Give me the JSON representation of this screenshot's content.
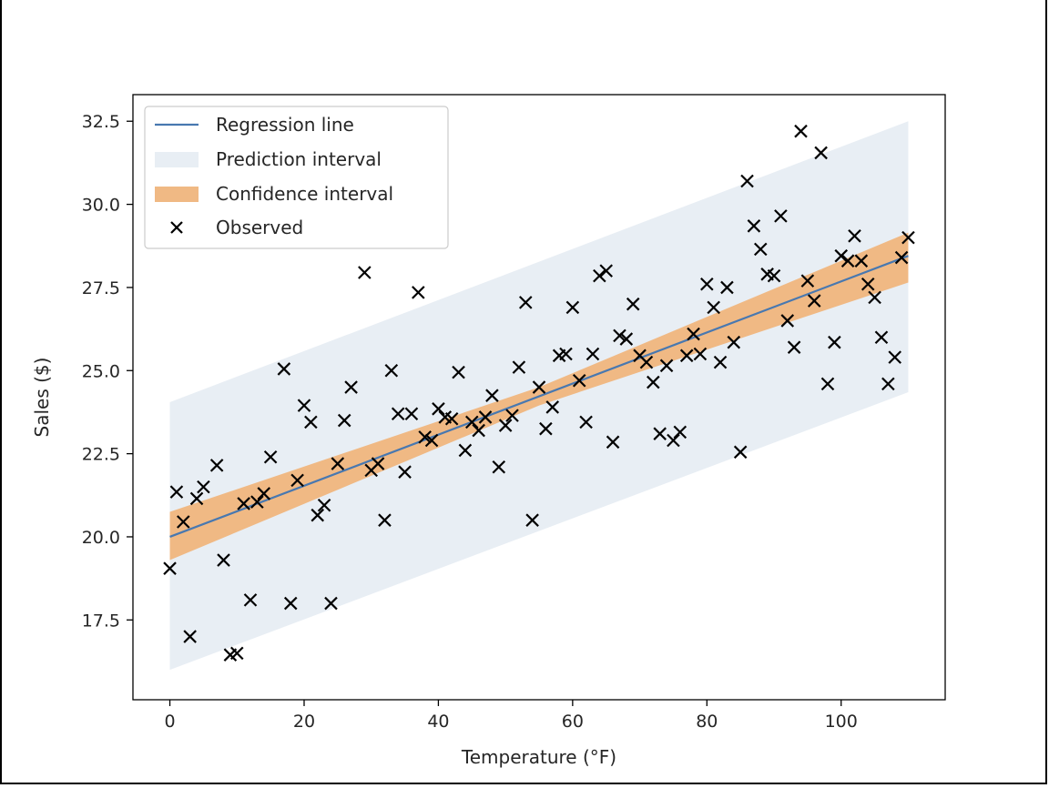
{
  "chart_data": {
    "type": "scatter",
    "title": "",
    "xlabel": "Temperature (°F)",
    "ylabel": "Sales ($)",
    "xlim": [
      -5.5,
      115.5
    ],
    "ylim": [
      15.1,
      33.3
    ],
    "xticks": [
      0,
      20,
      40,
      60,
      80,
      100
    ],
    "yticks": [
      17.5,
      20.0,
      22.5,
      25.0,
      27.5,
      30.0,
      32.5
    ],
    "xtick_labels": [
      "0",
      "20",
      "40",
      "60",
      "80",
      "100"
    ],
    "ytick_labels": [
      "17.5",
      "20.0",
      "22.5",
      "25.0",
      "27.5",
      "30.0",
      "32.5"
    ],
    "grid": false,
    "legend_position": "top-left",
    "colors": {
      "regression": "#4878b0",
      "prediction": "#e8eef4",
      "confidence": "#f0b984",
      "observed": "#000000"
    },
    "legend": [
      {
        "key": "regression",
        "label": "Regression line"
      },
      {
        "key": "prediction",
        "label": "Prediction interval"
      },
      {
        "key": "confidence",
        "label": "Confidence interval"
      },
      {
        "key": "observed",
        "label": "Observed"
      }
    ],
    "regression_line": {
      "x": [
        0,
        110
      ],
      "y": [
        20.0,
        28.45
      ]
    },
    "prediction_interval": {
      "x": [
        0,
        110
      ],
      "lower": [
        16.0,
        24.35
      ],
      "upper": [
        24.05,
        32.5
      ]
    },
    "confidence_interval": {
      "x": [
        0,
        55,
        110
      ],
      "lower": [
        19.3,
        23.95,
        27.65
      ],
      "upper": [
        20.75,
        24.5,
        29.15
      ]
    },
    "observed": {
      "x": [
        0,
        1,
        2,
        3,
        4,
        5,
        7,
        8,
        9,
        10,
        11,
        12,
        13,
        14,
        15,
        17,
        18,
        19,
        20,
        21,
        22,
        23,
        24,
        25,
        26,
        27,
        29,
        30,
        31,
        32,
        33,
        34,
        35,
        36,
        37,
        38,
        39,
        40,
        41,
        42,
        43,
        44,
        45,
        46,
        47,
        48,
        49,
        50,
        51,
        52,
        53,
        54,
        55,
        56,
        57,
        58,
        59,
        60,
        61,
        62,
        63,
        64,
        65,
        66,
        67,
        68,
        69,
        70,
        71,
        72,
        73,
        74,
        75,
        76,
        77,
        78,
        79,
        80,
        81,
        82,
        83,
        84,
        85,
        86,
        87,
        88,
        89,
        90,
        91,
        92,
        93,
        94,
        95,
        96,
        97,
        98,
        99,
        100,
        101,
        102,
        103,
        104,
        105,
        106,
        107,
        108,
        109,
        110
      ],
      "y": [
        19.05,
        21.35,
        20.45,
        17.0,
        21.15,
        21.5,
        22.15,
        19.3,
        16.45,
        16.5,
        21.0,
        18.1,
        21.05,
        21.3,
        22.4,
        25.05,
        18.0,
        21.7,
        23.95,
        23.45,
        20.65,
        20.95,
        18.0,
        22.2,
        23.5,
        24.5,
        27.95,
        22.0,
        22.2,
        20.5,
        25.0,
        23.7,
        21.95,
        23.7,
        27.35,
        23.0,
        22.9,
        23.85,
        23.6,
        23.55,
        24.95,
        22.6,
        23.45,
        23.2,
        23.6,
        24.25,
        22.1,
        23.35,
        23.65,
        25.1,
        27.05,
        20.5,
        24.5,
        23.25,
        23.9,
        25.45,
        25.5,
        26.9,
        24.7,
        23.45,
        25.5,
        27.85,
        28.0,
        22.85,
        26.05,
        25.95,
        27.0,
        25.45,
        25.25,
        24.65,
        23.1,
        25.15,
        22.9,
        23.15,
        25.45,
        26.1,
        25.5,
        27.6,
        26.9,
        25.25,
        27.5,
        25.85,
        22.55,
        30.7,
        29.35,
        28.65,
        27.9,
        27.85,
        29.65,
        26.5,
        25.7,
        32.2,
        27.7,
        27.1,
        31.55,
        24.6,
        25.85,
        28.45,
        28.3,
        29.05,
        28.3,
        27.6,
        27.2,
        26.0,
        24.6,
        25.4,
        28.4,
        29.0
      ]
    }
  }
}
